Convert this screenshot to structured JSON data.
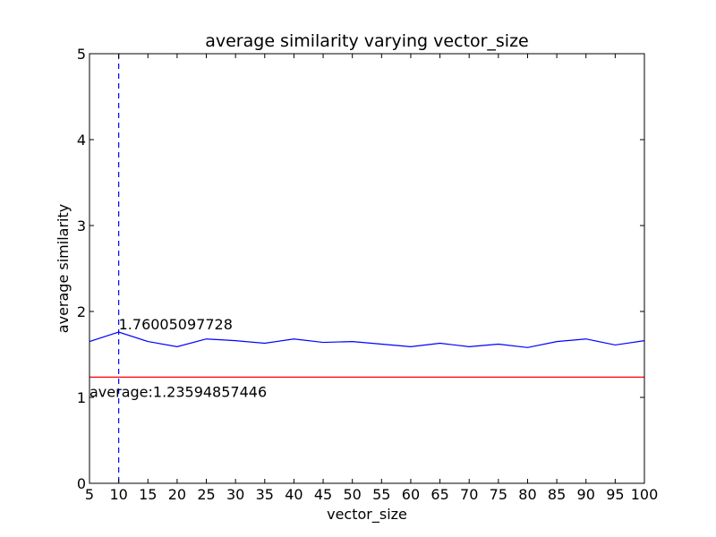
{
  "chart_data": {
    "type": "line",
    "title": "average similarity varying vector_size",
    "xlabel": "vector_size",
    "ylabel": "average similarity",
    "xlim": [
      5,
      100
    ],
    "ylim": [
      0,
      5
    ],
    "xticks": [
      5,
      10,
      15,
      20,
      25,
      30,
      35,
      40,
      45,
      50,
      55,
      60,
      65,
      70,
      75,
      80,
      85,
      90,
      95,
      100
    ],
    "yticks": [
      0,
      1,
      2,
      3,
      4,
      5
    ],
    "grid": false,
    "series": [
      {
        "color": "#0000ff",
        "x": [
          5,
          10,
          15,
          20,
          25,
          30,
          35,
          40,
          45,
          50,
          55,
          60,
          65,
          70,
          75,
          80,
          85,
          90,
          95,
          100
        ],
        "y": [
          1.65,
          1.76,
          1.65,
          1.59,
          1.68,
          1.66,
          1.63,
          1.68,
          1.64,
          1.65,
          1.62,
          1.59,
          1.63,
          1.59,
          1.62,
          1.58,
          1.65,
          1.68,
          1.61,
          1.66
        ]
      }
    ],
    "average_line": {
      "y": 1.23594857446,
      "color": "#ff0000",
      "label": "average:1.23594857446"
    },
    "max_marker": {
      "x": 10,
      "y": 1.76005097728,
      "color": "#0000ff",
      "style": "dashed",
      "label": "1.76005097728"
    }
  }
}
